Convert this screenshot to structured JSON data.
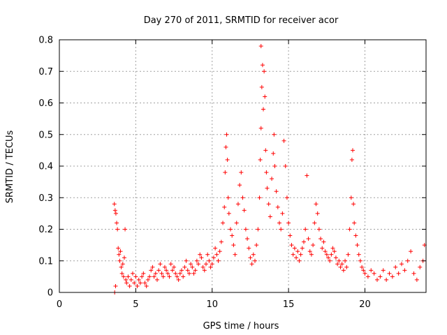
{
  "chart_data": {
    "type": "scatter",
    "title": "Day 270 of 2011, SRMTID for receiver acor",
    "xlabel": "GPS time / hours",
    "ylabel": "SRMTID / TECUs",
    "xlim": [
      0,
      24
    ],
    "ylim": [
      0,
      0.8
    ],
    "x_ticks": [
      0,
      5,
      10,
      15,
      20
    ],
    "y_ticks": [
      0,
      0.1,
      0.2,
      0.3,
      0.4,
      0.5,
      0.6,
      0.7,
      0.8
    ],
    "grid": true,
    "marker": "+",
    "color": "#ff0000",
    "series": [
      {
        "name": "acor",
        "points": [
          [
            3.6,
            0.28
          ],
          [
            3.65,
            0.26
          ],
          [
            3.7,
            0.25
          ],
          [
            3.75,
            0.22
          ],
          [
            3.8,
            0.2
          ],
          [
            3.62,
            0.0
          ],
          [
            3.68,
            0.02
          ],
          [
            3.85,
            0.14
          ],
          [
            3.9,
            0.12
          ],
          [
            3.95,
            0.1
          ],
          [
            4.0,
            0.13
          ],
          [
            4.05,
            0.08
          ],
          [
            4.1,
            0.06
          ],
          [
            4.15,
            0.09
          ],
          [
            4.2,
            0.05
          ],
          [
            4.25,
            0.11
          ],
          [
            4.3,
            0.2
          ],
          [
            4.35,
            0.04
          ],
          [
            4.4,
            0.03
          ],
          [
            4.5,
            0.05
          ],
          [
            4.6,
            0.02
          ],
          [
            4.7,
            0.04
          ],
          [
            4.8,
            0.06
          ],
          [
            4.9,
            0.03
          ],
          [
            5.0,
            0.05
          ],
          [
            5.1,
            0.02
          ],
          [
            5.2,
            0.04
          ],
          [
            5.3,
            0.03
          ],
          [
            5.4,
            0.05
          ],
          [
            5.5,
            0.06
          ],
          [
            5.6,
            0.03
          ],
          [
            5.7,
            0.02
          ],
          [
            5.8,
            0.04
          ],
          [
            5.9,
            0.05
          ],
          [
            6.0,
            0.07
          ],
          [
            6.1,
            0.08
          ],
          [
            6.2,
            0.05
          ],
          [
            6.3,
            0.06
          ],
          [
            6.4,
            0.04
          ],
          [
            6.5,
            0.07
          ],
          [
            6.6,
            0.09
          ],
          [
            6.7,
            0.06
          ],
          [
            6.8,
            0.05
          ],
          [
            6.9,
            0.08
          ],
          [
            7.0,
            0.07
          ],
          [
            7.1,
            0.06
          ],
          [
            7.2,
            0.05
          ],
          [
            7.3,
            0.09
          ],
          [
            7.4,
            0.07
          ],
          [
            7.5,
            0.08
          ],
          [
            7.6,
            0.06
          ],
          [
            7.7,
            0.05
          ],
          [
            7.8,
            0.04
          ],
          [
            7.9,
            0.06
          ],
          [
            8.0,
            0.07
          ],
          [
            8.1,
            0.05
          ],
          [
            8.2,
            0.08
          ],
          [
            8.3,
            0.1
          ],
          [
            8.4,
            0.07
          ],
          [
            8.5,
            0.06
          ],
          [
            8.6,
            0.09
          ],
          [
            8.7,
            0.08
          ],
          [
            8.8,
            0.06
          ],
          [
            8.9,
            0.07
          ],
          [
            9.0,
            0.1
          ],
          [
            9.1,
            0.09
          ],
          [
            9.2,
            0.12
          ],
          [
            9.3,
            0.11
          ],
          [
            9.4,
            0.08
          ],
          [
            9.5,
            0.07
          ],
          [
            9.6,
            0.09
          ],
          [
            9.7,
            0.12
          ],
          [
            9.8,
            0.1
          ],
          [
            9.9,
            0.08
          ],
          [
            10.0,
            0.09
          ],
          [
            10.1,
            0.11
          ],
          [
            10.2,
            0.14
          ],
          [
            10.3,
            0.12
          ],
          [
            10.4,
            0.1
          ],
          [
            10.5,
            0.13
          ],
          [
            10.6,
            0.16
          ],
          [
            10.7,
            0.22
          ],
          [
            10.8,
            0.27
          ],
          [
            10.85,
            0.38
          ],
          [
            10.9,
            0.46
          ],
          [
            10.95,
            0.5
          ],
          [
            11.0,
            0.42
          ],
          [
            11.05,
            0.3
          ],
          [
            11.1,
            0.25
          ],
          [
            11.2,
            0.2
          ],
          [
            11.3,
            0.18
          ],
          [
            11.4,
            0.15
          ],
          [
            11.5,
            0.12
          ],
          [
            11.6,
            0.22
          ],
          [
            11.7,
            0.28
          ],
          [
            11.8,
            0.34
          ],
          [
            11.9,
            0.38
          ],
          [
            12.0,
            0.3
          ],
          [
            12.1,
            0.26
          ],
          [
            12.2,
            0.2
          ],
          [
            12.3,
            0.17
          ],
          [
            12.4,
            0.14
          ],
          [
            12.5,
            0.11
          ],
          [
            12.6,
            0.09
          ],
          [
            12.7,
            0.12
          ],
          [
            12.8,
            0.1
          ],
          [
            12.9,
            0.15
          ],
          [
            13.0,
            0.2
          ],
          [
            13.1,
            0.3
          ],
          [
            13.15,
            0.42
          ],
          [
            13.2,
            0.52
          ],
          [
            13.25,
            0.65
          ],
          [
            13.3,
            0.72
          ],
          [
            13.2,
            0.78
          ],
          [
            13.35,
            0.58
          ],
          [
            13.4,
            0.7
          ],
          [
            13.45,
            0.62
          ],
          [
            13.5,
            0.45
          ],
          [
            13.55,
            0.38
          ],
          [
            13.6,
            0.33
          ],
          [
            13.7,
            0.28
          ],
          [
            13.8,
            0.24
          ],
          [
            13.9,
            0.36
          ],
          [
            14.0,
            0.44
          ],
          [
            14.05,
            0.5
          ],
          [
            14.1,
            0.4
          ],
          [
            14.2,
            0.32
          ],
          [
            14.3,
            0.27
          ],
          [
            14.4,
            0.22
          ],
          [
            14.5,
            0.2
          ],
          [
            14.6,
            0.25
          ],
          [
            14.7,
            0.48
          ],
          [
            14.8,
            0.4
          ],
          [
            14.9,
            0.3
          ],
          [
            15.0,
            0.22
          ],
          [
            15.1,
            0.18
          ],
          [
            15.2,
            0.15
          ],
          [
            15.3,
            0.12
          ],
          [
            15.4,
            0.14
          ],
          [
            15.5,
            0.11
          ],
          [
            15.6,
            0.13
          ],
          [
            15.7,
            0.1
          ],
          [
            15.8,
            0.12
          ],
          [
            15.9,
            0.14
          ],
          [
            16.0,
            0.16
          ],
          [
            16.1,
            0.2
          ],
          [
            16.2,
            0.37
          ],
          [
            16.3,
            0.17
          ],
          [
            16.4,
            0.13
          ],
          [
            16.5,
            0.12
          ],
          [
            16.6,
            0.15
          ],
          [
            16.7,
            0.22
          ],
          [
            16.8,
            0.28
          ],
          [
            16.9,
            0.25
          ],
          [
            17.0,
            0.2
          ],
          [
            17.1,
            0.17
          ],
          [
            17.2,
            0.14
          ],
          [
            17.3,
            0.16
          ],
          [
            17.4,
            0.13
          ],
          [
            17.5,
            0.12
          ],
          [
            17.6,
            0.11
          ],
          [
            17.7,
            0.1
          ],
          [
            17.8,
            0.12
          ],
          [
            17.9,
            0.14
          ],
          [
            18.0,
            0.13
          ],
          [
            18.1,
            0.11
          ],
          [
            18.2,
            0.09
          ],
          [
            18.3,
            0.1
          ],
          [
            18.4,
            0.08
          ],
          [
            18.5,
            0.09
          ],
          [
            18.6,
            0.07
          ],
          [
            18.7,
            0.1
          ],
          [
            18.8,
            0.08
          ],
          [
            18.9,
            0.12
          ],
          [
            19.0,
            0.2
          ],
          [
            19.1,
            0.3
          ],
          [
            19.15,
            0.42
          ],
          [
            19.2,
            0.45
          ],
          [
            19.25,
            0.28
          ],
          [
            19.3,
            0.22
          ],
          [
            19.4,
            0.18
          ],
          [
            19.5,
            0.15
          ],
          [
            19.6,
            0.12
          ],
          [
            19.7,
            0.1
          ],
          [
            19.8,
            0.08
          ],
          [
            19.9,
            0.07
          ],
          [
            20.0,
            0.06
          ],
          [
            20.2,
            0.05
          ],
          [
            20.4,
            0.07
          ],
          [
            20.6,
            0.06
          ],
          [
            20.8,
            0.04
          ],
          [
            21.0,
            0.05
          ],
          [
            21.2,
            0.07
          ],
          [
            21.4,
            0.04
          ],
          [
            21.6,
            0.06
          ],
          [
            21.8,
            0.05
          ],
          [
            22.0,
            0.08
          ],
          [
            22.2,
            0.06
          ],
          [
            22.4,
            0.09
          ],
          [
            22.6,
            0.07
          ],
          [
            22.8,
            0.1
          ],
          [
            23.0,
            0.13
          ],
          [
            23.2,
            0.06
          ],
          [
            23.4,
            0.04
          ],
          [
            23.6,
            0.08
          ],
          [
            23.8,
            0.1
          ],
          [
            23.9,
            0.15
          ]
        ]
      }
    ]
  }
}
